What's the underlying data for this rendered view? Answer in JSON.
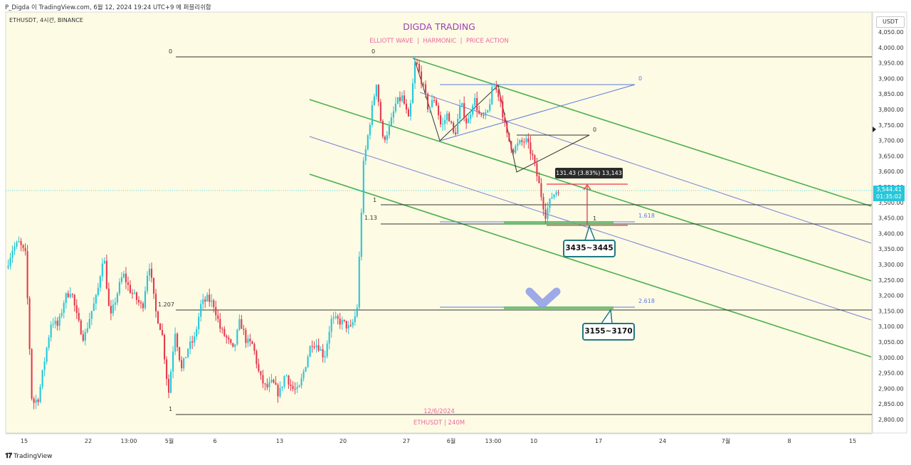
{
  "header": {
    "caption": "P_Digda 이 TradingView.com, 6월 12, 2024 19:24 UTC+9 에 퍼블리쉬함",
    "symbol_line": "ETHUSDT, 4시간, BINANCE"
  },
  "watermark": {
    "title": "DIGDA TRADING",
    "subtitle": "ELLIOTT WAVE  |  HARMONIC  |  PRICE ACTION",
    "date": "12/6/2024",
    "symbol": "ETHUSDT | 240M"
  },
  "price_axis": {
    "currency": "USDT",
    "ticks": [
      "4,050.00",
      "4,000.00",
      "3,950.00",
      "3,900.00",
      "3,850.00",
      "3,800.00",
      "3,750.00",
      "3,700.00",
      "3,650.00",
      "3,600.00",
      "3,550.00",
      "3,500.00",
      "3,450.00",
      "3,400.00",
      "3,350.00",
      "3,300.00",
      "3,250.00",
      "3,200.00",
      "3,150.00",
      "3,100.00",
      "3,050.00",
      "3,000.00",
      "2,950.00",
      "2,900.00",
      "2,850.00",
      "2,800.00"
    ],
    "current_price": "3,544.41",
    "countdown": "01:35:02"
  },
  "time_axis": {
    "ticks": [
      "15",
      "22",
      "13:00",
      "5월",
      "6",
      "13",
      "20",
      "27",
      "6월",
      "13:00",
      "10",
      "17",
      "24",
      "7월",
      "8",
      "15"
    ]
  },
  "annotations": {
    "fib_labels": [
      "0",
      "0",
      "0",
      "1",
      "1.13",
      "1",
      "1.618",
      "2.618",
      "1.207",
      "1",
      "0"
    ],
    "measure": "131.43 (3.83%) 13,143",
    "target_upper": "3435~3445",
    "target_lower": "3155~3170"
  },
  "colors": {
    "background": "#fdfbe3",
    "up_candle": "#26c6da",
    "down_candle": "#e53950",
    "channel_green": "#4caf50",
    "channel_blue": "#7b7fd8",
    "fib_blue": "#5b7be0",
    "zone_green": "#66bb6a",
    "watermark_title": "#9c3fb5",
    "watermark_sub": "#e86aa0"
  },
  "chart_data": {
    "type": "candlestick",
    "symbol": "ETHUSDT",
    "timeframe": "4h",
    "exchange": "BINANCE",
    "ylim": [
      2790,
      4075
    ],
    "x_period": [
      "2024-04-11",
      "2024-06-12"
    ],
    "last_price": 3544.41,
    "path_points": [
      [
        3290,
        3350
      ],
      [
        3370,
        3330
      ],
      [
        2850,
        2870
      ],
      [
        3000,
        3120
      ],
      [
        3100,
        3190
      ],
      [
        3220,
        3120
      ],
      [
        3060,
        3140
      ],
      [
        3200,
        3340
      ],
      [
        3120,
        3200
      ],
      [
        3270,
        3220
      ],
      [
        3190,
        3160
      ],
      [
        3310,
        3150
      ],
      [
        3080,
        2880
      ],
      [
        3090,
        2960
      ],
      [
        3030,
        3060
      ],
      [
        3170,
        3190
      ],
      [
        3170,
        3090
      ],
      [
        3060,
        3020
      ],
      [
        3120,
        3050
      ],
      [
        3040,
        2940
      ],
      [
        2900,
        2920
      ],
      [
        2880,
        2950
      ],
      [
        2900,
        2890
      ],
      [
        2970,
        3050
      ],
      [
        3040,
        3000
      ],
      [
        3120,
        3120
      ],
      [
        3110,
        3090
      ],
      [
        3150,
        3620
      ],
      [
        3760,
        3890
      ],
      [
        3700,
        3740
      ],
      [
        3820,
        3840
      ],
      [
        3760,
        3960
      ],
      [
        3890,
        3800
      ],
      [
        3840,
        3740
      ],
      [
        3790,
        3710
      ],
      [
        3820,
        3750
      ],
      [
        3840,
        3770
      ],
      [
        3780,
        3880
      ],
      [
        3840,
        3720
      ],
      [
        3670,
        3690
      ],
      [
        3700,
        3650
      ],
      [
        3560,
        3460
      ],
      [
        3520,
        3544
      ]
    ],
    "levels": [
      {
        "label": "0",
        "price": 3975
      },
      {
        "label": "1",
        "price": 3498
      },
      {
        "label": "1.13",
        "price": 3435
      },
      {
        "label": "1.207",
        "price": 3155
      },
      {
        "label": "1",
        "price": 2820
      },
      {
        "label": "1.618",
        "price": 3440
      },
      {
        "label": "2.618",
        "price": 3165
      }
    ],
    "zones": [
      {
        "label": "3435~3445",
        "low": 3435,
        "high": 3445
      },
      {
        "label": "3155~3170",
        "low": 3155,
        "high": 3170
      }
    ],
    "measure": {
      "from": 3428,
      "to": 3560,
      "change": 131.43,
      "percent": 3.83,
      "volume": 13143
    }
  }
}
